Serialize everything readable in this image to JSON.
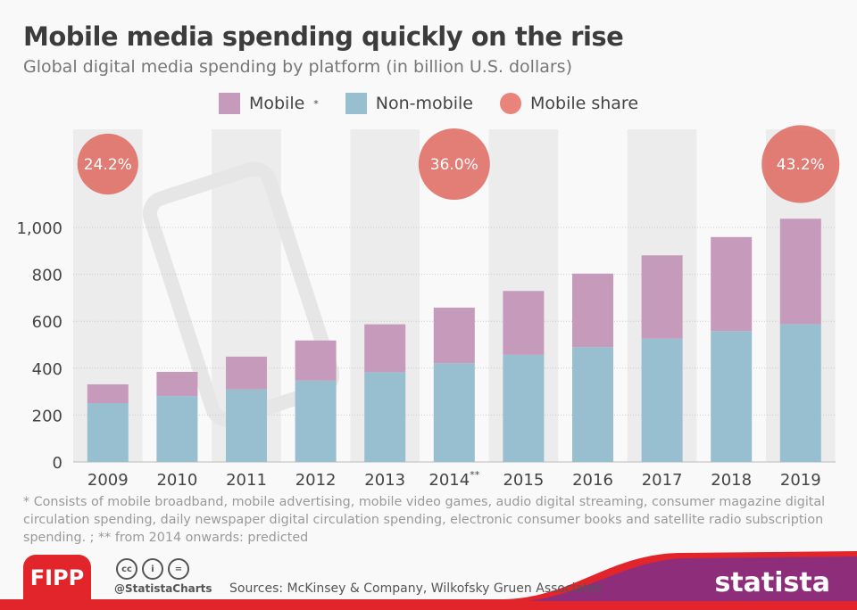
{
  "header": {
    "title": "Mobile media spending quickly on the rise",
    "subtitle": "Global digital media spending by platform (in billion U.S. dollars)"
  },
  "legend": [
    {
      "label": "Mobile",
      "sup": "*",
      "color": "#c69aba"
    },
    {
      "label": "Non-mobile",
      "sup": "",
      "color": "#97bfcf"
    },
    {
      "label": "Mobile share",
      "sup": "",
      "color": "#e8847a"
    }
  ],
  "chart_data": {
    "type": "bar",
    "stacked": true,
    "title": "Mobile media spending quickly on the rise",
    "subtitle": "Global digital media spending by platform (in billion U.S. dollars)",
    "categories": [
      "2009",
      "2010",
      "2011",
      "2012",
      "2013",
      "2014",
      "2015",
      "2016",
      "2017",
      "2018",
      "2019"
    ],
    "category_sups": [
      "",
      "",
      "",
      "",
      "",
      "**",
      "",
      "",
      "",
      "",
      ""
    ],
    "series": [
      {
        "name": "Non-mobile",
        "color": "#97bfcf",
        "values": [
          251,
          281,
          309,
          347,
          383,
          421,
          457,
          490,
          526,
          558,
          588
        ]
      },
      {
        "name": "Mobile",
        "color": "#c69aba",
        "values": [
          80,
          103,
          140,
          171,
          204,
          237,
          272,
          313,
          355,
          401,
          449
        ]
      }
    ],
    "annotations": [
      {
        "category": "2009",
        "label": "24.2%"
      },
      {
        "category": "2014",
        "label": "36.0%"
      },
      {
        "category": "2019",
        "label": "43.2%"
      }
    ],
    "yticks": [
      0,
      200,
      400,
      600,
      800,
      1000
    ],
    "ytick_labels": [
      "0",
      "200",
      "400",
      "600",
      "800",
      "1,000"
    ],
    "ylim": [
      0,
      1000
    ],
    "grid": true,
    "legend_position": "top"
  },
  "footnote": "* Consists of mobile broadband, mobile advertising, mobile video games, audio digital streaming, consumer magazine digital circulation spending, daily newspaper digital circulation spending, electronic consumer books and satellite radio subscription spending. ; ** from 2014 onwards: predicted",
  "footer": {
    "fipp": "FIPP",
    "handle": "@StatistaCharts",
    "sources": "Sources: McKinsey & Company, Wilkofsky Gruen Associates",
    "brand": "statista",
    "cc_icons": [
      "cc",
      "i",
      "="
    ]
  }
}
